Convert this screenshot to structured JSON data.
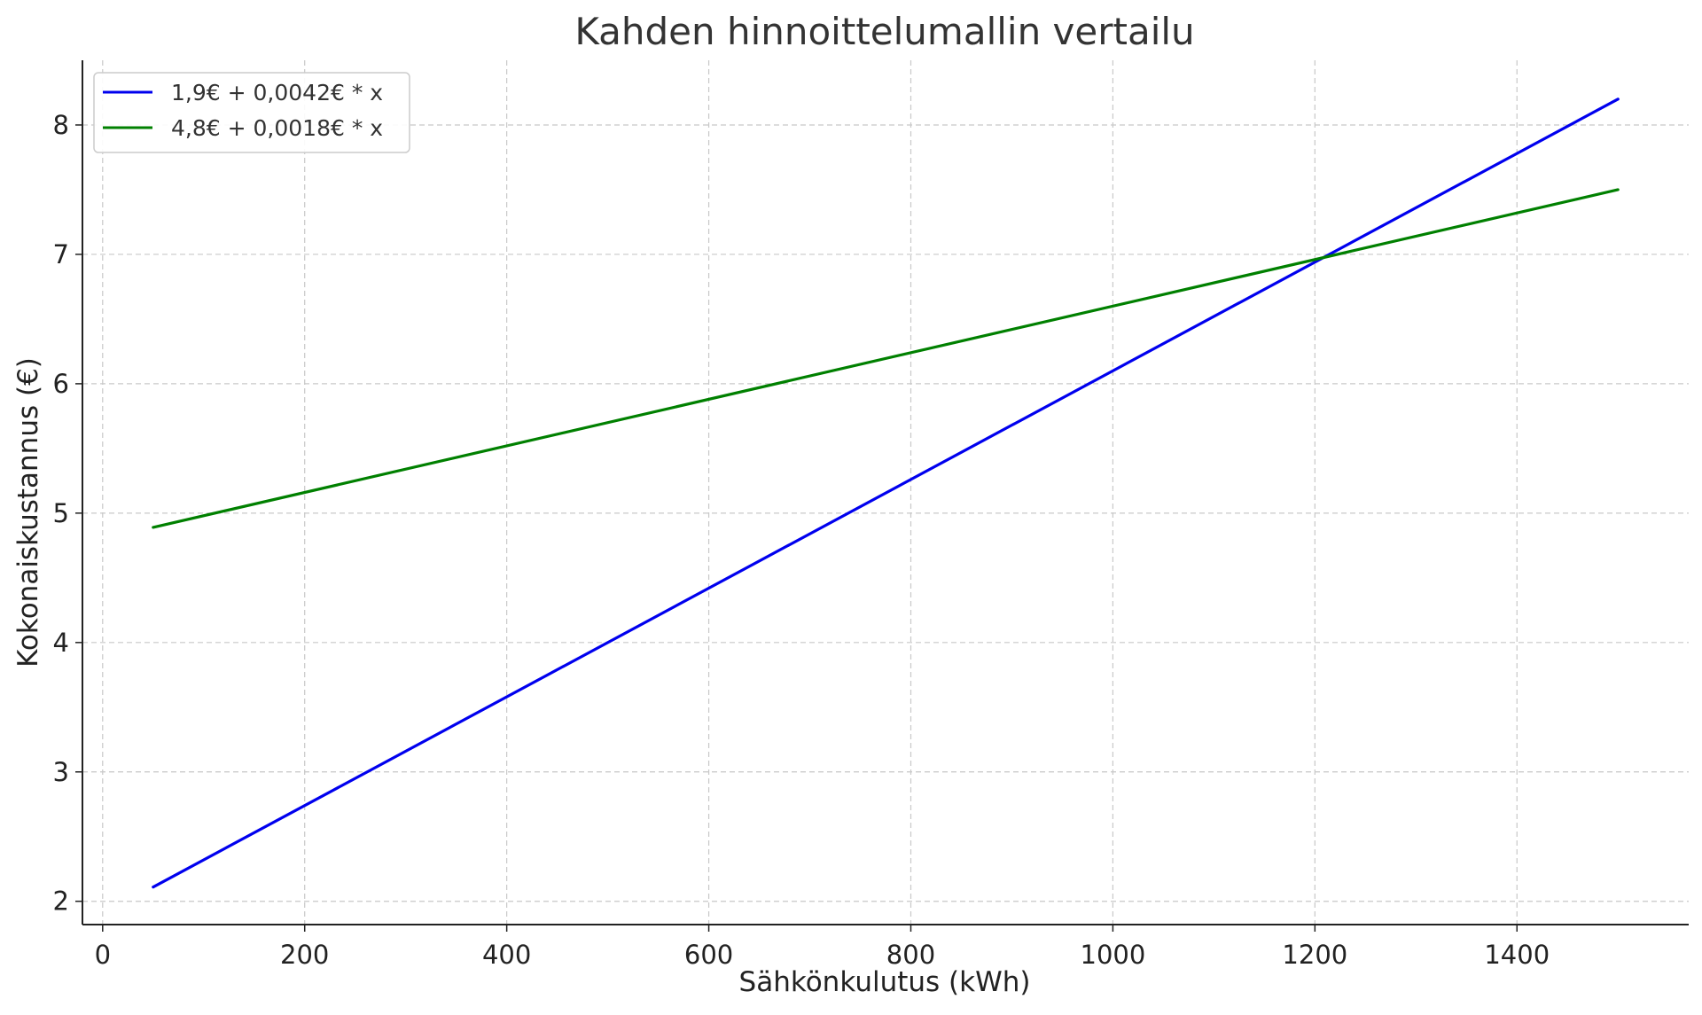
{
  "chart_data": {
    "type": "line",
    "title": "Kahden hinnoittelumallin vertailu",
    "xlabel": "Sähkönkulutus (kWh)",
    "ylabel": "Kokonaiskustannus (€)",
    "xlim": [
      -20,
      1570
    ],
    "ylim": [
      1.82,
      8.5
    ],
    "xticks": [
      0,
      200,
      400,
      600,
      800,
      1000,
      1200,
      1400
    ],
    "yticks": [
      2,
      3,
      4,
      5,
      6,
      7,
      8
    ],
    "x_tick_labels": [
      "0",
      "200",
      "400",
      "600",
      "800",
      "1000",
      "1200",
      "1400"
    ],
    "y_tick_labels": [
      "2",
      "3",
      "4",
      "5",
      "6",
      "7",
      "8"
    ],
    "grid": true,
    "legend_position": "top-left",
    "series": [
      {
        "name": "1,9€ + 0,0042€ * x",
        "color": "#0000ee",
        "x": [
          50,
          1500
        ],
        "y": [
          2.11,
          8.2
        ]
      },
      {
        "name": "4,8€ + 0,0018€ * x",
        "color": "#008000",
        "x": [
          50,
          1500
        ],
        "y": [
          4.89,
          7.5
        ]
      }
    ]
  }
}
